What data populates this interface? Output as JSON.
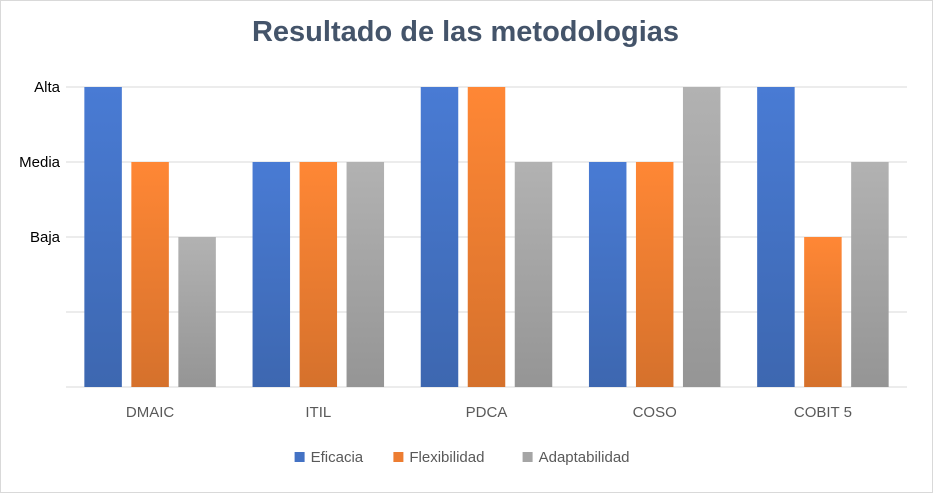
{
  "chart_data": {
    "type": "bar",
    "title": "Resultado de las metodologias",
    "categories": [
      "DMAIC",
      "ITIL",
      "PDCA",
      "COSO",
      "COBIT 5"
    ],
    "y_tick_labels": [
      {
        "value": 4,
        "label": "Alta"
      },
      {
        "value": 3,
        "label": "Media"
      },
      {
        "value": 2,
        "label": "Baja"
      }
    ],
    "ylim": [
      0,
      4
    ],
    "grid": true,
    "legend_position": "bottom",
    "series": [
      {
        "name": "Eficacia",
        "color": "#4472c4",
        "values": [
          4,
          3,
          4,
          3,
          4
        ]
      },
      {
        "name": "Flexibilidad",
        "color": "#ed7d31",
        "values": [
          3,
          3,
          4,
          3,
          2
        ]
      },
      {
        "name": "Adaptabilidad",
        "color": "#a5a5a5",
        "values": [
          2,
          3,
          3,
          4,
          3
        ]
      }
    ]
  }
}
